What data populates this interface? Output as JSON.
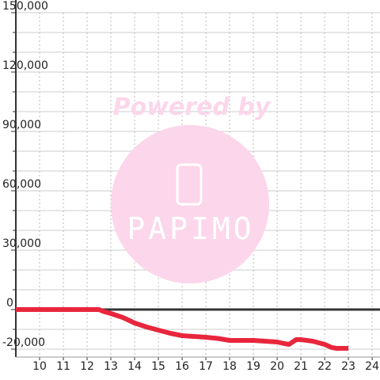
{
  "chart_data": {
    "type": "line",
    "x": [
      9,
      12.5,
      12.7,
      13,
      13.5,
      14,
      14.5,
      15,
      15.5,
      16,
      16.5,
      17,
      17.5,
      18,
      18.5,
      19,
      19.5,
      20,
      20.3,
      20.5,
      20.7,
      20.8,
      21,
      21.5,
      22,
      22.3,
      22.5,
      23
    ],
    "series": [
      {
        "color": "#e8263c",
        "values": [
          0,
          0,
          -1000,
          -2000,
          -4000,
          -6800,
          -8800,
          -10400,
          -12000,
          -13200,
          -13600,
          -14000,
          -14600,
          -15600,
          -15600,
          -15600,
          -16000,
          -16400,
          -17200,
          -17600,
          -16000,
          -15200,
          -15200,
          -16000,
          -17600,
          -19200,
          -19600,
          -19600
        ]
      }
    ],
    "xlim": [
      9,
      24.33
    ],
    "xticks": [
      10,
      11,
      12,
      13,
      14,
      15,
      16,
      17,
      18,
      19,
      20,
      21,
      22,
      23,
      24
    ],
    "ylim": [
      -24000,
      150000
    ],
    "yticks": [
      {
        "value": 150000,
        "label": "150,000"
      },
      {
        "value": 120000,
        "label": "120,000"
      },
      {
        "value": 90000,
        "label": "90,000"
      },
      {
        "value": 60000,
        "label": "60,000"
      },
      {
        "value": 30000,
        "label": "30,000"
      },
      0,
      {
        "value": -20000,
        "label": "-20,000"
      }
    ],
    "y_grid_lines": [
      140000,
      130000,
      110000,
      100000,
      80000,
      70000,
      50000,
      40000,
      20000,
      10000,
      -10000
    ],
    "grid": true,
    "watermark": {
      "text": "Powered by",
      "brand": "PAPIMO"
    }
  }
}
